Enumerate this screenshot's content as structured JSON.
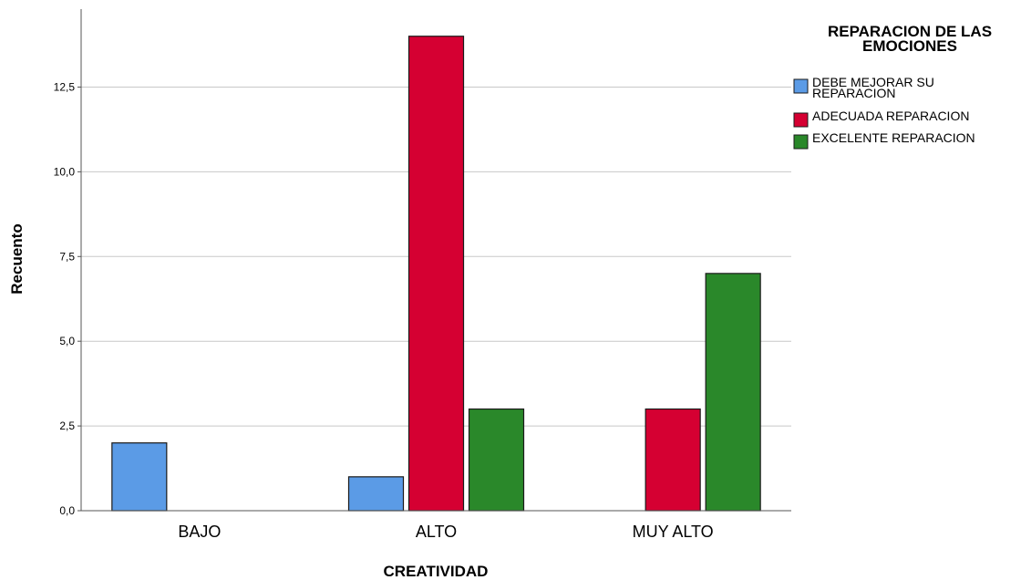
{
  "chart_data": {
    "type": "bar",
    "categories": [
      "BAJO",
      "ALTO",
      "MUY ALTO"
    ],
    "series": [
      {
        "name": "DEBE MEJORAR SU REPARACION",
        "label_lines": [
          "DEBE MEJORAR SU",
          "REPARACION"
        ],
        "color": "#5b9be6",
        "values": [
          2,
          1,
          0
        ]
      },
      {
        "name": "ADECUADA REPARACION",
        "label_lines": [
          "ADECUADA REPARACION"
        ],
        "color": "#d50032",
        "values": [
          0,
          14,
          3
        ]
      },
      {
        "name": "EXCELENTE REPARACION",
        "label_lines": [
          "EXCELENTE REPARACION"
        ],
        "color": "#2a882a",
        "values": [
          0,
          3,
          7
        ]
      }
    ],
    "xlabel": "CREATIVIDAD",
    "ylabel": "Recuento",
    "ylim": [
      0,
      14.8
    ],
    "yticks": [
      {
        "value": 0,
        "label": "0,0"
      },
      {
        "value": 2.5,
        "label": "2,5"
      },
      {
        "value": 5,
        "label": "5,0"
      },
      {
        "value": 7.5,
        "label": "7,5"
      },
      {
        "value": 10,
        "label": "10,0"
      },
      {
        "value": 12.5,
        "label": "12,5"
      }
    ],
    "grid": true,
    "legend": {
      "title_lines": [
        "REPARACION DE LAS",
        "EMOCIONES"
      ],
      "placement": "top-right"
    }
  }
}
